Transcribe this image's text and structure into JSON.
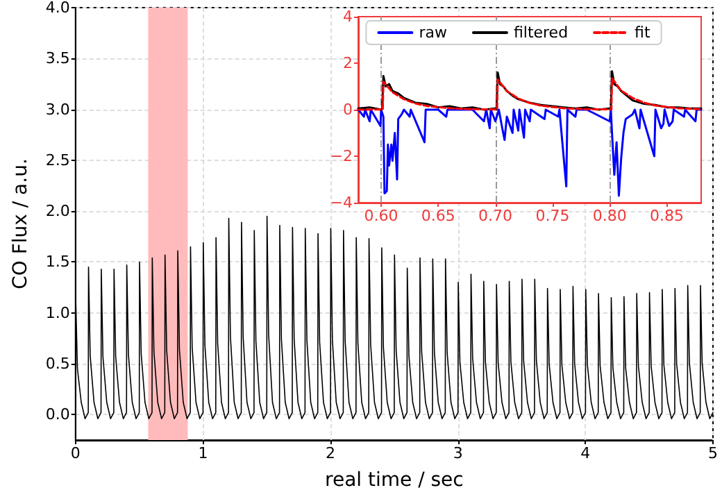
{
  "chart_data": [
    {
      "type": "line",
      "xlabel": "real time / sec",
      "ylabel": "CO Flux / a.u.",
      "xlim": [
        0,
        5
      ],
      "ylim": [
        -0.25,
        4.0
      ],
      "xticks": [
        0,
        1,
        2,
        3,
        4,
        5
      ],
      "yticks": [
        {
          "value": 0,
          "label": "0.0"
        },
        {
          "value": 0.5,
          "label": "0.5"
        },
        {
          "value": 1,
          "label": "1.0"
        },
        {
          "value": 1.5,
          "label": "1.5"
        },
        {
          "value": 2,
          "label": "2.0"
        },
        {
          "value": 2.5,
          "label": "2.5"
        },
        {
          "value": 3,
          "label": "3.0"
        },
        {
          "value": 3.5,
          "label": "3.5"
        },
        {
          "value": 4,
          "label": "4.0"
        }
      ],
      "grid": true,
      "legend": false,
      "marker": "none",
      "line_style": "solid",
      "bands": [
        {
          "axis": "x",
          "from": 0.57,
          "to": 0.88,
          "color": "#ffbbbb"
        }
      ],
      "series": [
        {
          "color": "#000000",
          "x": [
            0,
            0.002,
            0.015,
            0.045,
            0.075,
            0.1,
            0.102,
            0.115,
            0.145,
            0.175,
            0.2,
            0.202,
            0.215,
            0.245,
            0.275,
            0.3,
            0.302,
            0.315,
            0.345,
            0.375,
            0.4,
            0.402,
            0.415,
            0.445,
            0.475,
            0.5,
            0.502,
            0.515,
            0.545,
            0.575,
            0.6,
            0.602,
            0.615,
            0.645,
            0.675,
            0.7,
            0.702,
            0.715,
            0.745,
            0.775,
            0.8,
            0.802,
            0.815,
            0.845,
            0.875,
            0.9,
            0.902,
            0.915,
            0.945,
            0.975,
            1.0,
            1.002,
            1.015,
            1.045,
            1.075,
            1.1,
            1.102,
            1.115,
            1.145,
            1.175,
            1.2,
            1.202,
            1.215,
            1.245,
            1.275,
            1.3,
            1.302,
            1.315,
            1.345,
            1.375,
            1.4,
            1.402,
            1.415,
            1.445,
            1.475,
            1.5,
            1.502,
            1.515,
            1.545,
            1.575,
            1.6,
            1.602,
            1.615,
            1.645,
            1.675,
            1.7,
            1.702,
            1.715,
            1.745,
            1.775,
            1.8,
            1.802,
            1.815,
            1.845,
            1.875,
            1.9,
            1.902,
            1.915,
            1.945,
            1.975,
            2.0,
            2.002,
            2.015,
            2.045,
            2.075,
            2.1,
            2.102,
            2.115,
            2.145,
            2.175,
            2.2,
            2.202,
            2.215,
            2.245,
            2.275,
            2.3,
            2.302,
            2.315,
            2.345,
            2.375,
            2.4,
            2.402,
            2.415,
            2.445,
            2.475,
            2.5,
            2.502,
            2.515,
            2.545,
            2.575,
            2.6,
            2.602,
            2.615,
            2.645,
            2.675,
            2.7,
            2.702,
            2.715,
            2.745,
            2.775,
            2.8,
            2.802,
            2.815,
            2.845,
            2.875,
            2.9,
            2.902,
            2.915,
            2.945,
            2.975,
            3.0,
            3.002,
            3.015,
            3.045,
            3.075,
            3.1,
            3.102,
            3.115,
            3.145,
            3.175,
            3.2,
            3.202,
            3.215,
            3.245,
            3.275,
            3.3,
            3.302,
            3.315,
            3.345,
            3.375,
            3.4,
            3.402,
            3.415,
            3.445,
            3.475,
            3.5,
            3.502,
            3.515,
            3.545,
            3.575,
            3.6,
            3.602,
            3.615,
            3.645,
            3.675,
            3.7,
            3.702,
            3.715,
            3.745,
            3.775,
            3.8,
            3.802,
            3.815,
            3.845,
            3.875,
            3.9,
            3.902,
            3.915,
            3.945,
            3.975,
            4.0,
            4.002,
            4.015,
            4.045,
            4.075,
            4.1,
            4.102,
            4.115,
            4.145,
            4.175,
            4.2,
            4.202,
            4.215,
            4.245,
            4.275,
            4.3,
            4.302,
            4.315,
            4.345,
            4.375,
            4.4,
            4.402,
            4.415,
            4.445,
            4.475,
            4.5,
            4.502,
            4.515,
            4.545,
            4.575,
            4.6,
            4.602,
            4.615,
            4.645,
            4.675,
            4.7,
            4.702,
            4.715,
            4.745,
            4.775,
            4.8,
            4.802,
            4.815,
            4.845,
            4.875,
            4.9,
            4.902,
            4.915,
            4.945,
            4.975,
            5.0
          ],
          "values": [
            0.02,
            1.12,
            0.45,
            0.12,
            -0.04,
            0.02,
            1.45,
            0.58,
            0.12,
            -0.04,
            0.02,
            1.43,
            0.57,
            0.12,
            -0.04,
            0.02,
            1.43,
            0.57,
            0.12,
            -0.04,
            0.02,
            1.47,
            0.59,
            0.12,
            -0.04,
            0.02,
            1.5,
            0.6,
            0.12,
            -0.04,
            0.02,
            1.54,
            0.62,
            0.12,
            -0.04,
            0.02,
            1.57,
            0.63,
            0.12,
            -0.04,
            0.02,
            1.61,
            0.64,
            0.12,
            -0.04,
            0.02,
            1.65,
            0.66,
            0.12,
            -0.04,
            0.02,
            1.69,
            0.68,
            0.12,
            -0.04,
            0.02,
            1.74,
            0.7,
            0.12,
            -0.04,
            0.02,
            1.93,
            0.77,
            0.12,
            -0.04,
            0.02,
            1.89,
            0.76,
            0.12,
            -0.04,
            0.02,
            1.81,
            0.72,
            0.12,
            -0.04,
            0.02,
            1.95,
            0.78,
            0.12,
            -0.04,
            0.02,
            1.86,
            0.74,
            0.12,
            -0.04,
            0.02,
            1.84,
            0.74,
            0.12,
            -0.04,
            0.02,
            1.83,
            0.73,
            0.12,
            -0.04,
            0.02,
            1.78,
            0.71,
            0.12,
            -0.04,
            0.02,
            1.83,
            0.73,
            0.12,
            -0.04,
            0.02,
            1.81,
            0.72,
            0.12,
            -0.04,
            0.02,
            1.74,
            0.7,
            0.12,
            -0.04,
            0.02,
            1.73,
            0.69,
            0.12,
            -0.04,
            0.02,
            1.64,
            0.66,
            0.12,
            -0.04,
            0.02,
            1.57,
            0.63,
            0.12,
            -0.04,
            0.02,
            1.44,
            0.58,
            0.12,
            -0.04,
            0.02,
            1.54,
            0.62,
            0.12,
            -0.04,
            0.02,
            1.53,
            0.61,
            0.12,
            -0.04,
            0.02,
            1.53,
            0.61,
            0.12,
            -0.04,
            0.02,
            1.3,
            0.52,
            0.12,
            -0.04,
            0.02,
            1.38,
            0.55,
            0.12,
            -0.04,
            0.02,
            1.31,
            0.52,
            0.12,
            -0.04,
            0.02,
            1.28,
            0.51,
            0.12,
            -0.04,
            0.02,
            1.31,
            0.52,
            0.12,
            -0.04,
            0.02,
            1.33,
            0.53,
            0.12,
            -0.04,
            0.02,
            1.33,
            0.53,
            0.12,
            -0.04,
            0.02,
            1.24,
            0.5,
            0.12,
            -0.04,
            0.02,
            1.23,
            0.49,
            0.12,
            -0.04,
            0.02,
            1.26,
            0.5,
            0.12,
            -0.04,
            0.02,
            1.23,
            0.49,
            0.12,
            -0.04,
            0.02,
            1.19,
            0.48,
            0.12,
            -0.04,
            0.02,
            1.15,
            0.46,
            0.12,
            -0.04,
            0.02,
            1.16,
            0.46,
            0.12,
            -0.04,
            0.02,
            1.19,
            0.48,
            0.12,
            -0.04,
            0.02,
            1.2,
            0.48,
            0.12,
            -0.04,
            0.02,
            1.23,
            0.49,
            0.12,
            -0.04,
            0.02,
            1.24,
            0.5,
            0.12,
            -0.04,
            0.02,
            1.27,
            0.51,
            0.12,
            -0.04,
            0.02,
            1.27,
            0.51,
            0.12,
            -0.04,
            0.02
          ]
        }
      ]
    },
    {
      "type": "line",
      "xlim": [
        0.58,
        0.88
      ],
      "ylim": [
        -4,
        4
      ],
      "xticks": [
        {
          "value": 0.6,
          "label": "0.60"
        },
        {
          "value": 0.65,
          "label": "0.65"
        },
        {
          "value": 0.7,
          "label": "0.70"
        },
        {
          "value": 0.75,
          "label": "0.75"
        },
        {
          "value": 0.8,
          "label": "0.80"
        },
        {
          "value": 0.85,
          "label": "0.85"
        }
      ],
      "yticks": [
        {
          "value": -4,
          "label": "−4"
        },
        {
          "value": -2,
          "label": "−2"
        },
        0,
        2,
        4
      ],
      "grid": false,
      "legend": "top",
      "marker": "none",
      "ref_lines": [
        {
          "axis": "x",
          "value": 0.6,
          "color": "#999999",
          "line_style": "dashed"
        },
        {
          "axis": "x",
          "value": 0.7,
          "color": "#999999",
          "line_style": "dashed"
        },
        {
          "axis": "x",
          "value": 0.8,
          "color": "#999999",
          "line_style": "dashed"
        }
      ],
      "series": [
        {
          "name": "raw",
          "color": "#0000ff",
          "line_style": "solid",
          "x": [
            0.58,
            0.585,
            0.586,
            0.59,
            0.591,
            0.5995,
            0.6,
            0.602,
            0.603,
            0.605,
            0.606,
            0.607,
            0.609,
            0.61,
            0.612,
            0.614,
            0.615,
            0.618,
            0.62,
            0.625,
            0.626,
            0.638,
            0.639,
            0.65,
            0.657,
            0.658,
            0.68,
            0.69,
            0.692,
            0.695,
            0.696,
            0.7,
            0.703,
            0.706,
            0.708,
            0.71,
            0.715,
            0.716,
            0.72,
            0.721,
            0.725,
            0.726,
            0.73,
            0.731,
            0.743,
            0.744,
            0.755,
            0.756,
            0.762,
            0.763,
            0.77,
            0.771,
            0.78,
            0.8,
            0.801,
            0.802,
            0.804,
            0.806,
            0.808,
            0.81,
            0.812,
            0.814,
            0.82,
            0.822,
            0.826,
            0.827,
            0.839,
            0.84,
            0.845,
            0.847,
            0.848,
            0.852,
            0.855,
            0.856,
            0.865,
            0.866,
            0.875,
            0.876,
            0.88
          ],
          "values": [
            0,
            -0.3,
            0,
            -0.5,
            0,
            -0.7,
            0,
            -0.3,
            -3.6,
            -3.5,
            -1.5,
            -2.4,
            -1.5,
            -2.2,
            -1.0,
            -3.0,
            -0.4,
            -0.2,
            0,
            -0.3,
            0,
            -1.4,
            0,
            0,
            -0.3,
            0,
            0,
            -0.5,
            0,
            -0.8,
            0,
            -0.5,
            0,
            -0.8,
            -1.3,
            -0.3,
            -1.0,
            0,
            -0.9,
            0,
            -1.2,
            0,
            -0.5,
            0,
            -0.4,
            0,
            -0.3,
            0,
            -3.3,
            0,
            -0.3,
            0,
            0,
            -0.5,
            0,
            -1.0,
            -2.8,
            -1.4,
            -3.7,
            -2.1,
            -1.0,
            -0.4,
            -0.2,
            0,
            -0.8,
            0,
            -2.0,
            0,
            -0.8,
            -0.6,
            0,
            -0.7,
            -0.5,
            0,
            -0.3,
            0,
            -0.5,
            0,
            0
          ]
        },
        {
          "name": "filtered",
          "color": "#000000",
          "line_style": "solid",
          "x": [
            0.58,
            0.59,
            0.6,
            0.601,
            0.602,
            0.604,
            0.607,
            0.61,
            0.615,
            0.62,
            0.63,
            0.64,
            0.65,
            0.66,
            0.67,
            0.68,
            0.69,
            0.7,
            0.701,
            0.702,
            0.704,
            0.707,
            0.71,
            0.715,
            0.72,
            0.73,
            0.74,
            0.75,
            0.76,
            0.77,
            0.78,
            0.79,
            0.8,
            0.801,
            0.802,
            0.804,
            0.807,
            0.81,
            0.815,
            0.82,
            0.83,
            0.84,
            0.85,
            0.86,
            0.87,
            0.88
          ],
          "values": [
            0.05,
            0.1,
            0.0,
            0.05,
            1.45,
            1.0,
            1.1,
            0.8,
            0.7,
            0.5,
            0.3,
            0.25,
            0.1,
            0.15,
            0.05,
            0.1,
            0.0,
            0.05,
            0.0,
            1.6,
            1.1,
            1.0,
            0.8,
            0.6,
            0.45,
            0.3,
            0.2,
            0.15,
            0.1,
            0.05,
            0.1,
            0.0,
            0.05,
            0.0,
            1.65,
            1.1,
            1.0,
            0.8,
            0.6,
            0.4,
            0.25,
            0.2,
            0.1,
            0.1,
            0.05,
            0.05
          ]
        },
        {
          "name": "fit",
          "color": "#ff0000",
          "line_style": "dashed",
          "x": [
            0.58,
            0.6015,
            0.602,
            0.61,
            0.62,
            0.63,
            0.64,
            0.66,
            0.68,
            0.7015,
            0.702,
            0.71,
            0.72,
            0.73,
            0.74,
            0.76,
            0.78,
            0.8015,
            0.802,
            0.81,
            0.82,
            0.83,
            0.84,
            0.86,
            0.88
          ],
          "values": [
            0,
            0.01,
            1.2,
            0.75,
            0.45,
            0.27,
            0.16,
            0.06,
            0.02,
            0.01,
            1.3,
            0.8,
            0.48,
            0.29,
            0.17,
            0.06,
            0.02,
            0.01,
            1.35,
            0.82,
            0.5,
            0.3,
            0.18,
            0.06,
            0.02
          ]
        }
      ]
    }
  ]
}
